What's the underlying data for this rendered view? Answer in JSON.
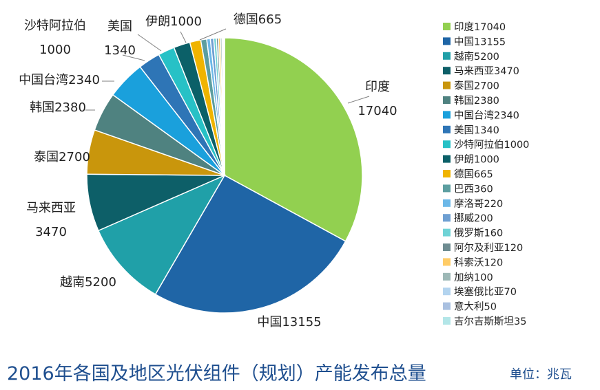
{
  "chart_data": {
    "type": "pie",
    "title": "2016年各国及地区光伏组件（规划）产能发布总量",
    "unit_label": "单位：兆瓦",
    "slices": [
      {
        "name": "印度",
        "value": 17040,
        "legend": "印度17040",
        "label_lines": [
          "印度",
          "17040"
        ],
        "color": "#92d050"
      },
      {
        "name": "中国",
        "value": 13155,
        "legend": "中国13155",
        "label_lines": [
          "中国13155"
        ],
        "color": "#1f65a6"
      },
      {
        "name": "越南",
        "value": 5200,
        "legend": "越南5200",
        "label_lines": [
          "越南5200"
        ],
        "color": "#20a0a8"
      },
      {
        "name": "马来西亚",
        "value": 3470,
        "legend": "马来西亚3470",
        "label_lines": [
          "马来西亚",
          "3470"
        ],
        "color": "#0d5f68"
      },
      {
        "name": "泰国",
        "value": 2700,
        "legend": "泰国2700",
        "label_lines": [
          "泰国2700"
        ],
        "color": "#c9960c"
      },
      {
        "name": "韩国",
        "value": 2380,
        "legend": "韩国2380",
        "label_lines": [
          "韩国2380"
        ],
        "color": "#4f8280"
      },
      {
        "name": "中国台湾",
        "value": 2340,
        "legend": "中国台湾2340",
        "label_lines": [
          "中国台湾2340"
        ],
        "color": "#1aa0dc"
      },
      {
        "name": "美国",
        "value": 1340,
        "legend": "美国1340",
        "label_lines": [
          "美国",
          "1340"
        ],
        "color": "#2e75b6"
      },
      {
        "name": "沙特阿拉伯",
        "value": 1000,
        "legend": "沙特阿拉伯1000",
        "label_lines": [
          "沙特阿拉伯",
          "1000"
        ],
        "color": "#27c1c6"
      },
      {
        "name": "伊朗",
        "value": 1000,
        "legend": "伊朗1000",
        "label_lines": [
          "伊朗1000"
        ],
        "color": "#0b6068"
      },
      {
        "name": "德国",
        "value": 665,
        "legend": "德国665",
        "label_lines": [
          "德国665"
        ],
        "color": "#f0b400"
      },
      {
        "name": "巴西",
        "value": 360,
        "legend": "巴西360",
        "label_lines": [],
        "color": "#5c9ea0"
      },
      {
        "name": "摩洛哥",
        "value": 220,
        "legend": "摩洛哥220",
        "label_lines": [],
        "color": "#6cb8e8"
      },
      {
        "name": "挪威",
        "value": 200,
        "legend": "挪威200",
        "label_lines": [],
        "color": "#6e9fd2"
      },
      {
        "name": "俄罗斯",
        "value": 160,
        "legend": "俄罗斯160",
        "label_lines": [],
        "color": "#6fd3d6"
      },
      {
        "name": "阿尔及利亚",
        "value": 120,
        "legend": "阿尔及利亚120",
        "label_lines": [],
        "color": "#6e8c91"
      },
      {
        "name": "科索沃",
        "value": 120,
        "legend": "科索沃120",
        "label_lines": [],
        "color": "#ffcc66"
      },
      {
        "name": "加纳",
        "value": 100,
        "legend": "加纳100",
        "label_lines": [],
        "color": "#9db8b6"
      },
      {
        "name": "埃塞俄比亚",
        "value": 70,
        "legend": "埃塞俄比亚70",
        "label_lines": [],
        "color": "#b3d4ef"
      },
      {
        "name": "意大利",
        "value": 50,
        "legend": "意大利50",
        "label_lines": [],
        "color": "#a9c0e0"
      },
      {
        "name": "吉尔吉斯斯坦",
        "value": 35,
        "legend": "吉尔吉斯斯坦35",
        "label_lines": [],
        "color": "#b3e6e8"
      }
    ],
    "legend_position": "right"
  }
}
